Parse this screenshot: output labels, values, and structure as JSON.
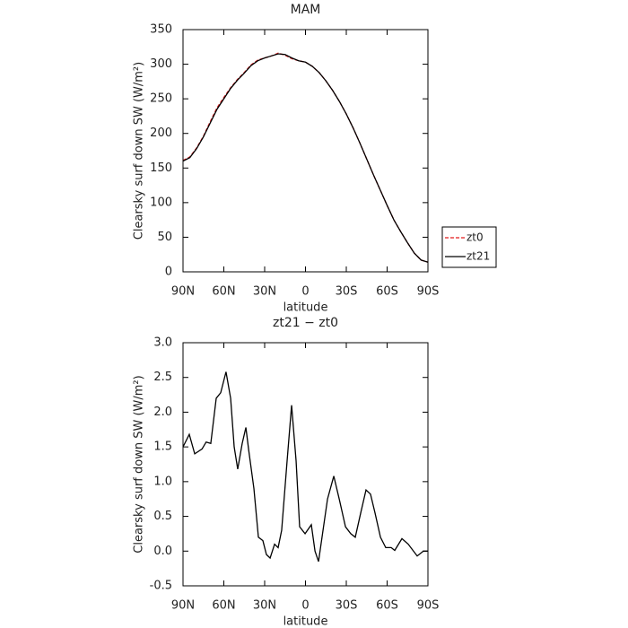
{
  "chart_data": [
    {
      "type": "line",
      "title": "MAM",
      "xlabel": "latitude",
      "ylabel": "Clearsky surf down SW (W/m²)",
      "x": [
        90,
        85,
        80,
        75,
        70,
        65,
        60,
        55,
        50,
        45,
        40,
        35,
        30,
        25,
        20,
        15,
        10,
        5,
        0,
        -5,
        -10,
        -15,
        -20,
        -25,
        -30,
        -35,
        -40,
        -45,
        -50,
        -55,
        -60,
        -65,
        -70,
        -75,
        -80,
        -85,
        -90
      ],
      "series": [
        {
          "name": "zt0",
          "color": "#e41a1c",
          "dash": true,
          "values": [
            161,
            166,
            179,
            196,
            217,
            237,
            252,
            266,
            278,
            288,
            299,
            306,
            309,
            312,
            316,
            313,
            308,
            305,
            303,
            297,
            288,
            276,
            262,
            246,
            228,
            208,
            186,
            163,
            140,
            118,
            96,
            75,
            58,
            42,
            27,
            17,
            14
          ]
        },
        {
          "name": "zt21",
          "color": "#000000",
          "dash": false,
          "values": [
            160,
            165,
            178,
            195,
            215,
            235,
            250,
            265,
            277,
            287,
            298,
            305,
            309,
            312,
            315,
            314,
            309,
            305,
            303,
            297,
            288,
            276,
            262,
            246,
            228,
            208,
            186,
            163,
            140,
            118,
            96,
            75,
            58,
            42,
            27,
            17,
            14
          ]
        }
      ],
      "xlim": [
        90,
        -90
      ],
      "xticks": [
        {
          "value": 90,
          "label": "90N"
        },
        {
          "value": 60,
          "label": "60N"
        },
        {
          "value": 30,
          "label": "30N"
        },
        0,
        {
          "value": -30,
          "label": "30S"
        },
        {
          "value": -60,
          "label": "60S"
        },
        {
          "value": -90,
          "label": "90S"
        }
      ],
      "ylim": [
        0,
        350
      ],
      "yticks": [
        0,
        50,
        100,
        150,
        200,
        250,
        300,
        350
      ],
      "legend": "outside-right"
    },
    {
      "type": "line",
      "title": "zt21 − zt0",
      "xlabel": "latitude",
      "ylabel": "Clearsky surf down SW (W/m²)",
      "x": [
        90,
        85.4,
        81.4,
        76,
        73,
        69.6,
        65.6,
        62.3,
        58.4,
        55,
        52.4,
        49.8,
        46.5,
        43.8,
        41.7,
        37.9,
        34.6,
        31.3,
        28.7,
        26,
        22.7,
        20.1,
        17.5,
        13.5,
        10.2,
        6.9,
        4.3,
        0.3,
        -4.3,
        -7,
        -9.6,
        -12.9,
        -16.2,
        -20.8,
        -24.8,
        -29.4,
        -33.3,
        -36.6,
        -40.6,
        -44.5,
        -47.8,
        -51.1,
        -55.1,
        -59,
        -63,
        -65.6,
        -70.9,
        -75.5,
        -82.1,
        -86.7,
        -90
      ],
      "series": [
        {
          "name": "zt21 − zt0",
          "color": "#000000",
          "dash": false,
          "values": [
            1.5,
            1.68,
            1.4,
            1.47,
            1.57,
            1.55,
            2.2,
            2.28,
            2.58,
            2.2,
            1.5,
            1.18,
            1.55,
            1.78,
            1.45,
            0.9,
            0.2,
            0.15,
            -0.05,
            -0.1,
            0.1,
            0.05,
            0.3,
            1.3,
            2.1,
            1.3,
            0.35,
            0.25,
            0.38,
            0.0,
            -0.15,
            0.3,
            0.75,
            1.08,
            0.75,
            0.35,
            0.25,
            0.2,
            0.55,
            0.88,
            0.82,
            0.55,
            0.2,
            0.05,
            0.05,
            0.01,
            0.18,
            0.1,
            -0.07,
            0.0,
            0.0
          ]
        }
      ],
      "xlim": [
        90,
        -90
      ],
      "xticks": [
        {
          "value": 90,
          "label": "90N"
        },
        {
          "value": 60,
          "label": "60N"
        },
        {
          "value": 30,
          "label": "30N"
        },
        0,
        {
          "value": -30,
          "label": "30S"
        },
        {
          "value": -60,
          "label": "60S"
        },
        {
          "value": -90,
          "label": "90S"
        }
      ],
      "ylim": [
        -0.5,
        3.0
      ],
      "yticks": [
        -0.5,
        {
          "value": 0,
          "label": "0.0"
        },
        0.5,
        {
          "value": 1,
          "label": "1.0"
        },
        1.5,
        {
          "value": 2,
          "label": "2.0"
        },
        2.5,
        {
          "value": 3,
          "label": "3.0"
        }
      ]
    }
  ]
}
